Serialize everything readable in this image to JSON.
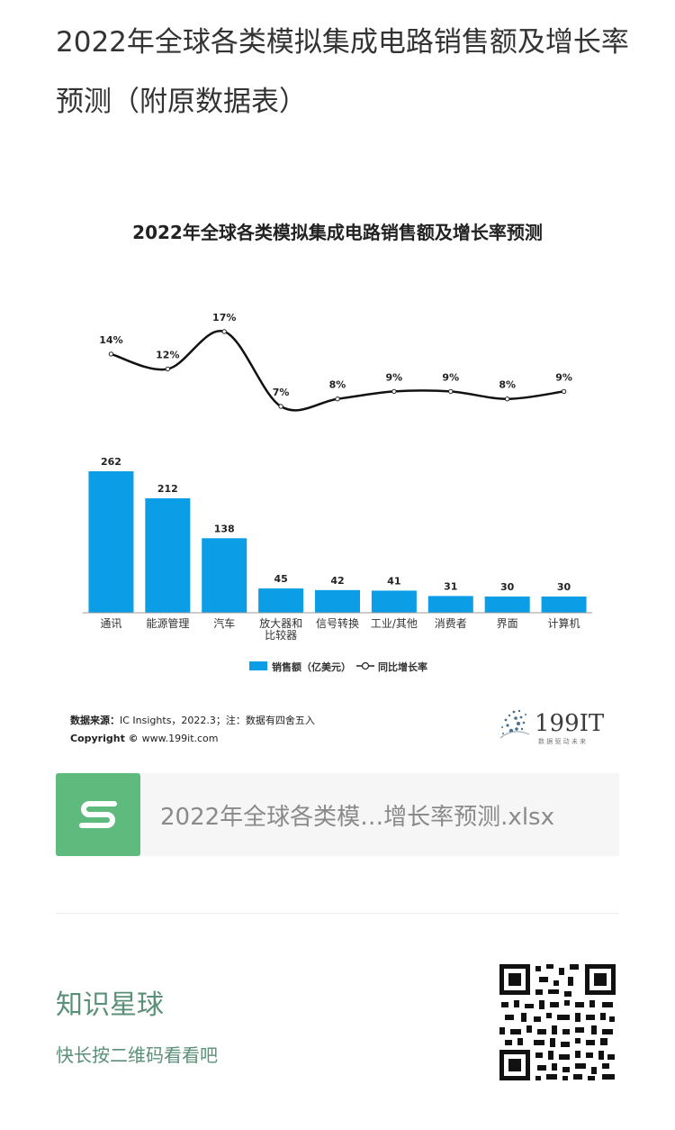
{
  "article": {
    "title": "2022年全球各类模拟集成电路销售额及增长率预测（附原数据表）"
  },
  "chart_data": {
    "type": "bar",
    "title": "2022年全球各类模拟集成电路销售额及增长率预测",
    "categories": [
      "通讯",
      "能源管理",
      "汽车",
      "放大器和比较器",
      "信号转换",
      "工业/其他",
      "消费者",
      "界面",
      "计算机"
    ],
    "category_lines": [
      [
        "通讯"
      ],
      [
        "能源管理"
      ],
      [
        "汽车"
      ],
      [
        "放大器和",
        "比较器"
      ],
      [
        "信号转换"
      ],
      [
        "工业/其他"
      ],
      [
        "消费者"
      ],
      [
        "界面"
      ],
      [
        "计算机"
      ]
    ],
    "series": [
      {
        "name": "销售额（亿美元）",
        "type": "bar",
        "values": [
          262,
          212,
          138,
          45,
          42,
          41,
          31,
          30,
          30
        ],
        "color": "#0b9de6"
      },
      {
        "name": "同比增长率",
        "type": "line",
        "values": [
          14,
          12,
          17,
          7,
          8,
          9,
          9,
          8,
          9
        ],
        "labels": [
          "14%",
          "12%",
          "17%",
          "7%",
          "8%",
          "9%",
          "9%",
          "8%",
          "9%"
        ],
        "color": "#222222"
      }
    ],
    "bar_labels": [
      "262",
      "212",
      "138",
      "45",
      "42",
      "41",
      "31",
      "30",
      "30"
    ],
    "legend": {
      "placement": "bottom-center",
      "bar_label": "销售额（亿美元）",
      "line_label": "同比增长率"
    },
    "ylim_bar": [
      0,
      262
    ],
    "ylim_line": [
      7,
      17
    ],
    "grid": false
  },
  "source": {
    "label": "数据来源：",
    "text": "IC Insights，2022.3；注：数据有四舍五入",
    "copyright_label": "Copyright ©",
    "copyright_site": "www.199it.com"
  },
  "brand": {
    "logo_text": "199IT",
    "tagline": "数 据 驱 动 未 来"
  },
  "attachment": {
    "icon": "spreadsheet-s-icon",
    "filename": "2022年全球各类模…增长率预测.xlsx",
    "color": "#5fba7d"
  },
  "footer": {
    "title": "知识星球",
    "subtitle": "快长按二维码看看吧",
    "qr_icon": "qr-code-icon"
  }
}
